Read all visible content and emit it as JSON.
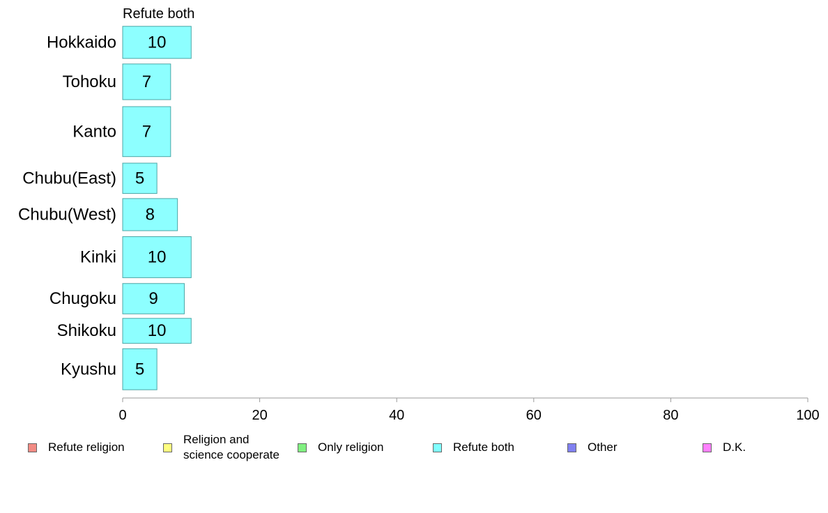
{
  "chart_data": {
    "type": "bar",
    "orientation": "horizontal",
    "title": "Refute both",
    "categories": [
      "Hokkaido",
      "Tohoku",
      "Kanto",
      "Chubu(East)",
      "Chubu(West)",
      "Kinki",
      "Chugoku",
      "Shikoku",
      "Kyushu"
    ],
    "values": [
      10,
      7,
      7,
      5,
      8,
      10,
      9,
      10,
      5
    ],
    "value_labels": [
      "10",
      "7",
      "7",
      "5",
      "8",
      "10",
      "9",
      "10",
      "5"
    ],
    "band_weights": [
      0.9,
      1.0,
      1.4,
      0.85,
      0.9,
      1.15,
      0.85,
      0.7,
      1.15
    ],
    "xlim": [
      0,
      100
    ],
    "xticks": [
      0,
      20,
      40,
      60,
      80,
      100
    ],
    "xlabel": "",
    "ylabel": "",
    "grid": false,
    "bar_color": "#8dffff",
    "bar_border": "#4da6a6"
  },
  "legend": {
    "placement": "bottom",
    "items": [
      {
        "label": "Refute religion",
        "color": "#f28b84"
      },
      {
        "label": "Religion and\nscience cooperate",
        "color": "#ffff80"
      },
      {
        "label": "Only religion",
        "color": "#80f080"
      },
      {
        "label": "Refute both",
        "color": "#80ffff"
      },
      {
        "label": "Other",
        "color": "#8080f0"
      },
      {
        "label": "D.K.",
        "color": "#ff80ff"
      }
    ]
  }
}
